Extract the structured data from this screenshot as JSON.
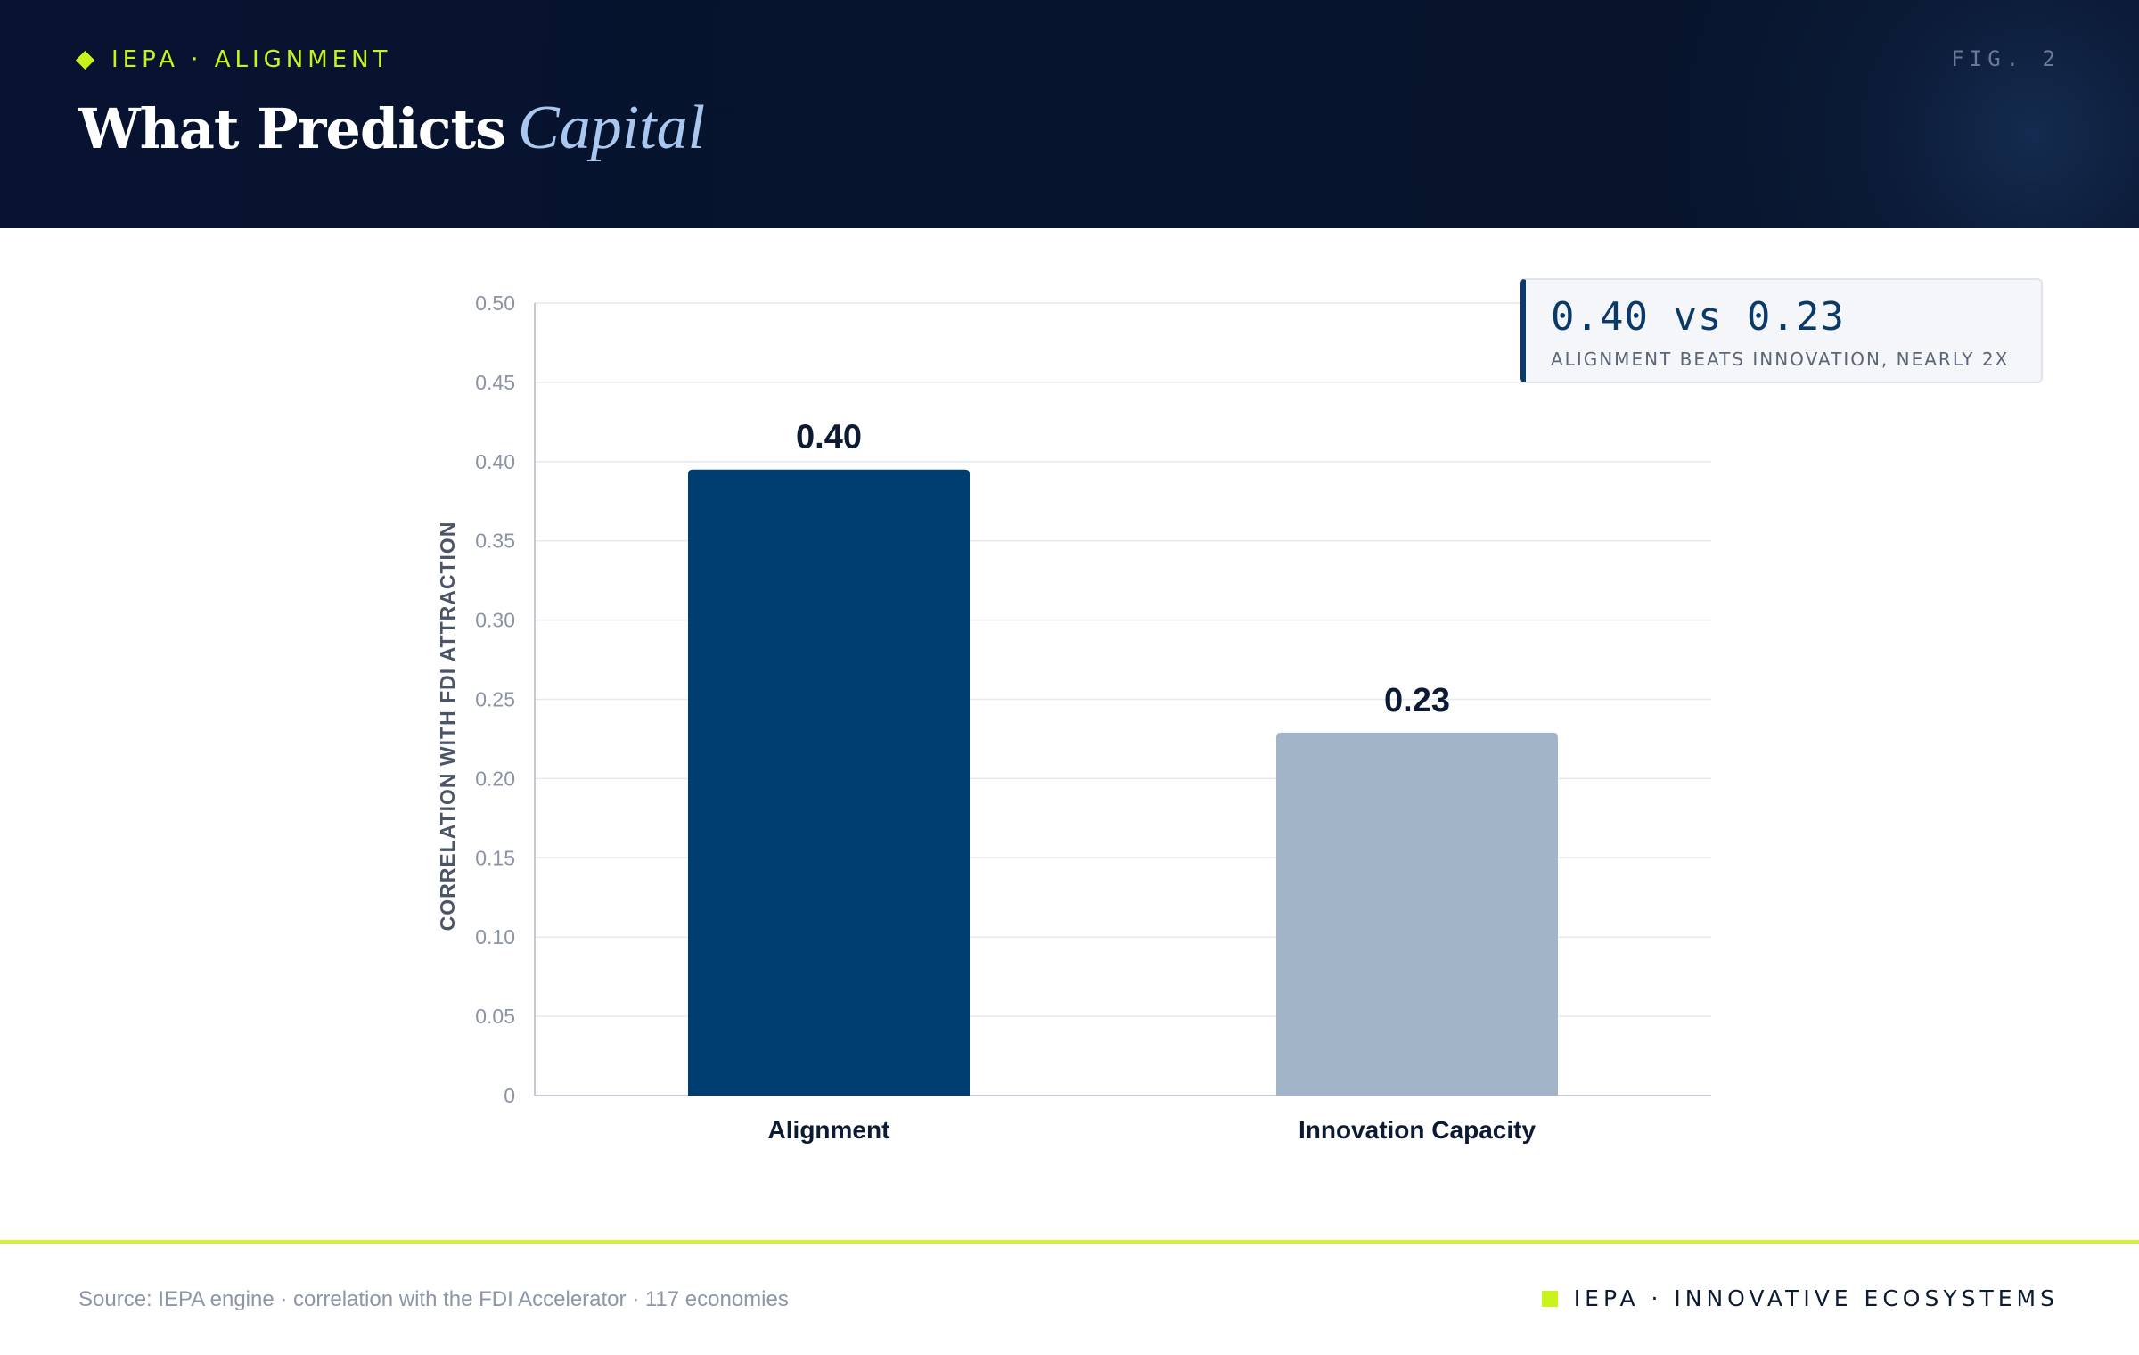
{
  "header": {
    "kicker": "IEPA · ALIGNMENT",
    "title_main": "What Predicts",
    "title_accent": "Capital",
    "fig_label": "FIG. 2"
  },
  "callout": {
    "headline": "0.40 vs 0.23",
    "subline": "ALIGNMENT BEATS INNOVATION, NEARLY 2X"
  },
  "footer": {
    "source": "Source: IEPA engine · correlation with the FDI Accelerator · 117 economies",
    "brand": "IEPA · INNOVATIVE ECOSYSTEMS"
  },
  "colors": {
    "bar_primary": "#003d70",
    "bar_secondary": "#a1b4c8",
    "accent_lime": "#c8f31d"
  },
  "icons": [
    "diamond-icon",
    "square-icon"
  ],
  "chart_data": {
    "type": "bar",
    "categories": [
      "Alignment",
      "Innovation Capacity"
    ],
    "values": [
      0.395,
      0.229
    ],
    "data_labels": [
      "0.40",
      "0.23"
    ],
    "xlabel": "",
    "ylabel": "CORRELATION WITH FDI ATTRACTION",
    "ylim": [
      0,
      0.5
    ],
    "yticks": [
      0,
      0.05,
      0.1,
      0.15,
      0.2,
      0.25,
      0.3,
      0.35,
      0.4,
      0.45,
      0.5
    ],
    "ytick_labels": [
      "0",
      "0.05",
      "0.10",
      "0.15",
      "0.20",
      "0.25",
      "0.30",
      "0.35",
      "0.40",
      "0.45",
      "0.50"
    ],
    "grid": true,
    "legend": "none"
  }
}
